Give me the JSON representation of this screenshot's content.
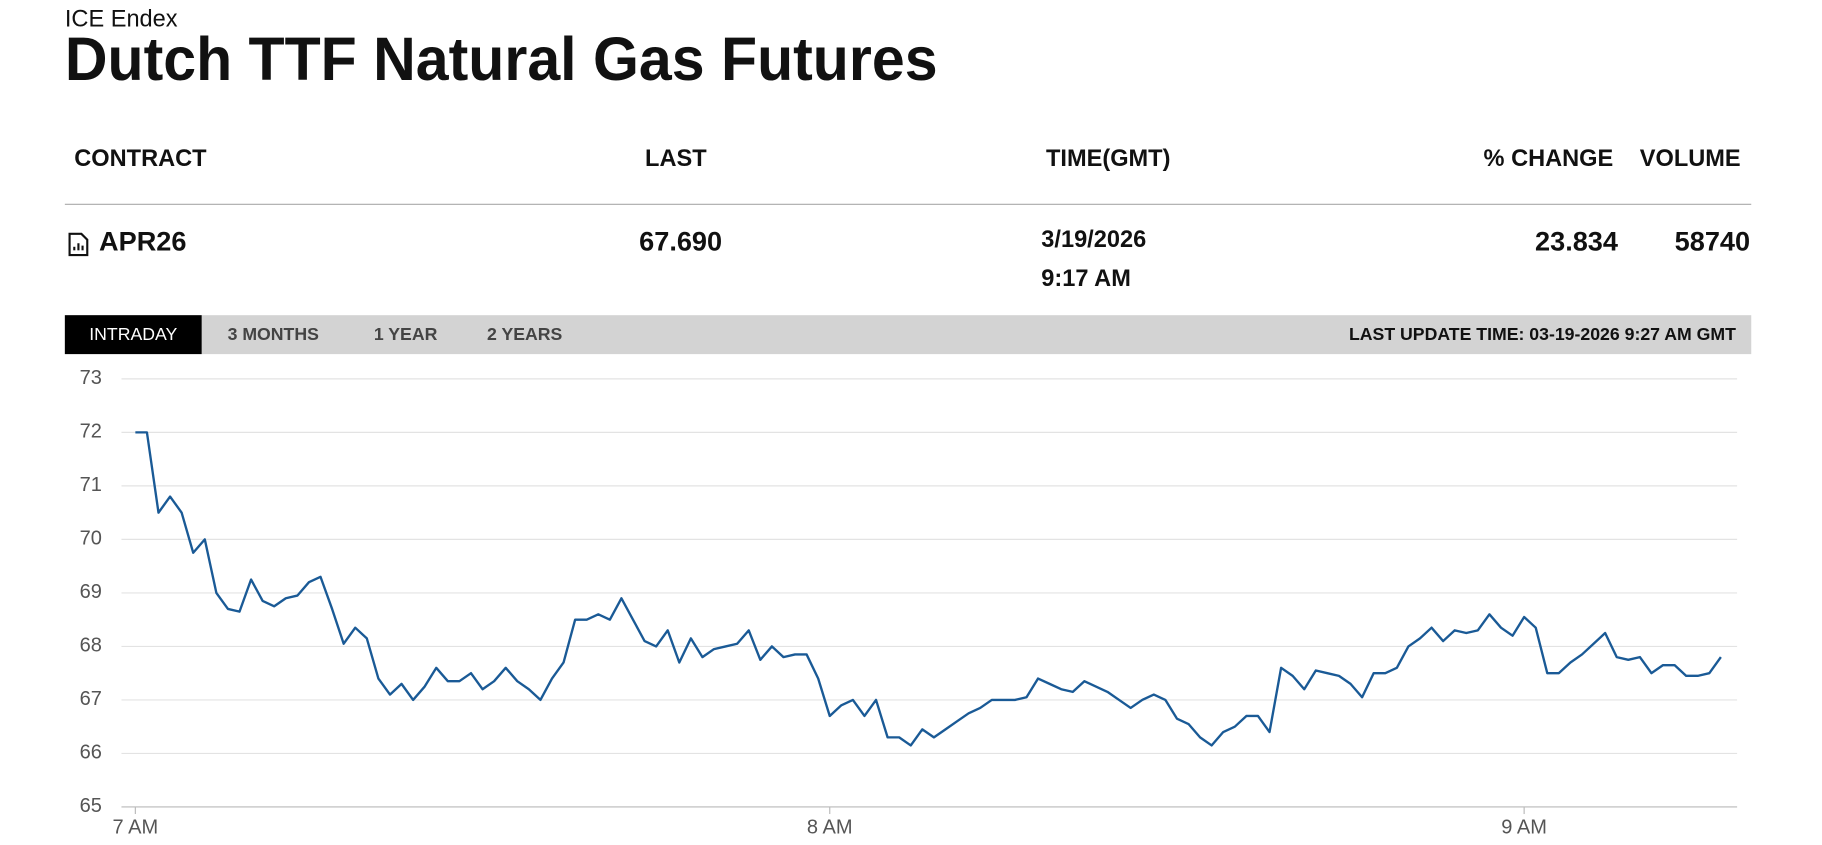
{
  "header": {
    "source": "ICE Endex",
    "title": "Dutch TTF Natural Gas Futures"
  },
  "table": {
    "columns": [
      "CONTRACT",
      "LAST",
      "TIME(GMT)",
      "% CHANGE",
      "VOLUME"
    ],
    "rows": [
      {
        "contract": "APR26",
        "last": "67.690",
        "date": "3/19/2026",
        "time": "9:17 AM",
        "change": "23.834",
        "volume": "58740"
      }
    ]
  },
  "tabs": [
    "INTRADAY",
    "3 MONTHS",
    "1 YEAR",
    "2 YEARS"
  ],
  "last_update": "LAST UPDATE TIME: 03-19-2026 9:27 AM GMT",
  "chart_data": {
    "type": "line",
    "color": "#1a5a96",
    "grid": true,
    "x": [
      0,
      1,
      2,
      3,
      4,
      5,
      6,
      7,
      8,
      9,
      10,
      11,
      12,
      13,
      14,
      15,
      16,
      17,
      18,
      19,
      20,
      21,
      22,
      23,
      24,
      25,
      26,
      27,
      28,
      29,
      30,
      31,
      32,
      33,
      34,
      35,
      36,
      37,
      38,
      39,
      40,
      41,
      42,
      43,
      44,
      45,
      46,
      47,
      48,
      49,
      50,
      51,
      52,
      53,
      54,
      55,
      56,
      57,
      58,
      59,
      60,
      61,
      62,
      63,
      64,
      65,
      66,
      67,
      68,
      69,
      70,
      71,
      72,
      73,
      74,
      75,
      76,
      77,
      78,
      79,
      80,
      81,
      82,
      83,
      84,
      85,
      86,
      87,
      88,
      89,
      90,
      91,
      92,
      93,
      94,
      95,
      96,
      97,
      98,
      99,
      100,
      101,
      102,
      103,
      104,
      105,
      106,
      107,
      108,
      109,
      110,
      111,
      112,
      113,
      114,
      115,
      116,
      117,
      118,
      119,
      120,
      121,
      122,
      123,
      124,
      125,
      126,
      127,
      128,
      129,
      130,
      131,
      132,
      133,
      134,
      135,
      136,
      137
    ],
    "values": [
      72.0,
      72.0,
      70.5,
      70.8,
      70.5,
      69.75,
      70.0,
      69.0,
      68.7,
      68.65,
      69.25,
      68.85,
      68.75,
      68.9,
      68.95,
      69.2,
      69.3,
      68.7,
      68.05,
      68.35,
      68.15,
      67.4,
      67.1,
      67.3,
      67.0,
      67.25,
      67.6,
      67.35,
      67.35,
      67.5,
      67.2,
      67.35,
      67.6,
      67.35,
      67.2,
      67.0,
      67.4,
      67.7,
      68.5,
      68.5,
      68.6,
      68.5,
      68.9,
      68.5,
      68.1,
      68.0,
      68.3,
      67.7,
      68.15,
      67.8,
      67.95,
      68.0,
      68.05,
      68.3,
      67.75,
      68.0,
      67.8,
      67.85,
      67.85,
      67.4,
      66.7,
      66.9,
      67.0,
      66.7,
      67.0,
      66.3,
      66.3,
      66.15,
      66.45,
      66.3,
      66.45,
      66.6,
      66.75,
      66.85,
      67.0,
      67.0,
      67.0,
      67.05,
      67.4,
      67.3,
      67.2,
      67.15,
      67.35,
      67.25,
      67.15,
      67.0,
      66.85,
      67.0,
      67.1,
      67.0,
      66.65,
      66.55,
      66.3,
      66.15,
      66.4,
      66.5,
      66.7,
      66.7,
      66.4,
      67.6,
      67.45,
      67.2,
      67.55,
      67.5,
      67.45,
      67.3,
      67.05,
      67.5,
      67.5,
      67.6,
      68.0,
      68.15,
      68.35,
      68.1,
      68.3,
      68.25,
      68.3,
      68.6,
      68.35,
      68.2,
      68.55,
      68.35,
      67.5,
      67.5,
      67.7,
      67.85,
      68.05,
      68.25,
      67.8,
      67.75,
      67.8,
      67.5,
      67.65,
      67.65,
      67.45,
      67.45,
      67.5,
      67.8
    ],
    "xlim": [
      -1.2,
      138.4
    ],
    "ylim": [
      65,
      73
    ],
    "xticks": [
      {
        "value": 0,
        "label": "7 AM"
      },
      {
        "value": 60,
        "label": "8 AM"
      },
      {
        "value": 120,
        "label": "9 AM"
      }
    ],
    "yticks": [
      65,
      66,
      67,
      68,
      69,
      70,
      71,
      72,
      73
    ]
  }
}
